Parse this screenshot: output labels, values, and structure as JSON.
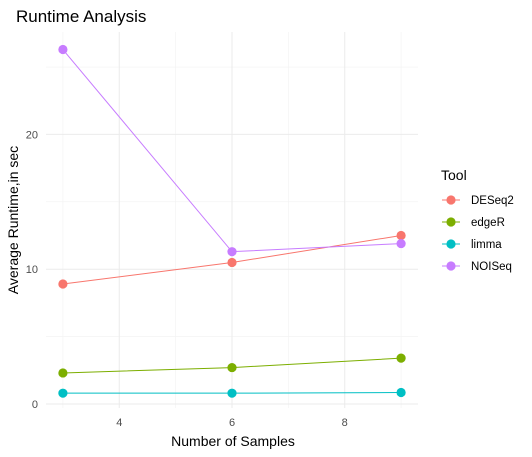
{
  "chart_data": {
    "type": "line",
    "title": "Runtime Analysis",
    "xlabel": "Number of Samples",
    "ylabel": "Average Runtime,in sec",
    "x": [
      3,
      6,
      9
    ],
    "xlim": [
      2.7,
      9.3
    ],
    "ylim": [
      -0.3,
      27.6
    ],
    "x_ticks": [
      4,
      6,
      8
    ],
    "y_ticks": [
      0,
      10,
      20
    ],
    "grid": true,
    "legend": {
      "title": "Tool",
      "placement": "right"
    },
    "series": [
      {
        "name": "DESeq2",
        "color": "#F8766D",
        "values": [
          8.9,
          10.5,
          12.5
        ]
      },
      {
        "name": "edgeR",
        "color": "#7CAE00",
        "values": [
          2.3,
          2.7,
          3.4
        ]
      },
      {
        "name": "limma",
        "color": "#00BFC4",
        "values": [
          0.8,
          0.8,
          0.85
        ]
      },
      {
        "name": "NOISeq",
        "color": "#C77CFF",
        "values": [
          26.3,
          11.3,
          11.9
        ]
      }
    ]
  }
}
